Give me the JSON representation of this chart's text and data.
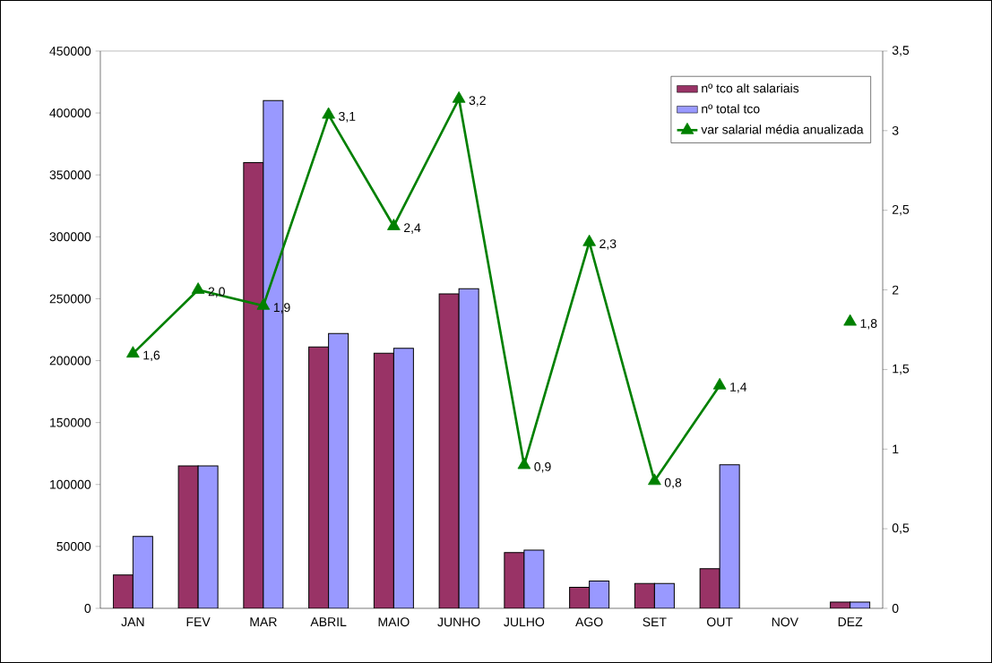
{
  "chart_data": {
    "type": "bar",
    "categories": [
      "JAN",
      "FEV",
      "MAR",
      "ABRIL",
      "MAIO",
      "JUNHO",
      "JULHO",
      "AGO",
      "SET",
      "OUT",
      "NOV",
      "DEZ"
    ],
    "series": [
      {
        "name": "nº tco alt salariais",
        "color": "#993366",
        "values": [
          27000,
          115000,
          360000,
          211000,
          206000,
          254000,
          45000,
          17000,
          20000,
          32000,
          null,
          5000
        ]
      },
      {
        "name": "nº total tco",
        "color": "#9999ff",
        "values": [
          58000,
          115000,
          410000,
          222000,
          210000,
          258000,
          47000,
          22000,
          20000,
          116000,
          null,
          5000
        ]
      },
      {
        "name": "var salarial média anualizada",
        "type": "line",
        "axis": "y2",
        "marker": "triangle",
        "color": "#008000",
        "values": [
          1.6,
          2.0,
          1.9,
          3.1,
          2.4,
          3.2,
          0.9,
          2.3,
          0.8,
          1.4,
          null,
          1.8
        ],
        "value_labels": [
          "1,6",
          "2,0",
          "1,9",
          "3,1",
          "2,4",
          "3,2",
          "0,9",
          "2,3",
          "0,8",
          "1,4",
          null,
          "1,8"
        ]
      }
    ],
    "ylim": [
      0,
      450000
    ],
    "yticks": [
      0,
      50000,
      100000,
      150000,
      200000,
      250000,
      300000,
      350000,
      400000,
      450000
    ],
    "y2lim": [
      0,
      3.5
    ],
    "y2ticks": [
      0,
      {
        "value": 0.5,
        "label": "0,5"
      },
      1,
      {
        "value": 1.5,
        "label": "1,5"
      },
      2,
      {
        "value": 2.5,
        "label": "2,5"
      },
      3,
      {
        "value": 3.5,
        "label": "3,5"
      }
    ],
    "legend": "top right"
  }
}
